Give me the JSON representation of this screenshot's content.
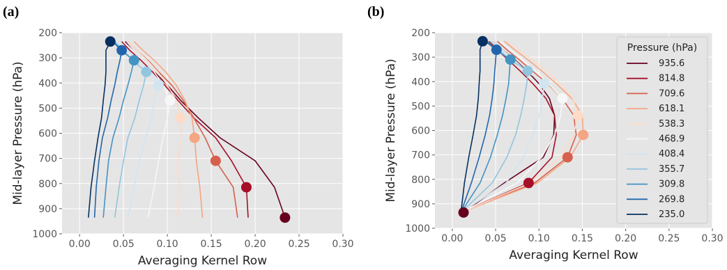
{
  "panels": {
    "a": "(a)",
    "b": "(b)"
  },
  "chart_data": [
    {
      "type": "line",
      "panel": "(a)",
      "xlabel": "Averaging Kernel Row",
      "ylabel": "Mid-layer Pressure (hPa)",
      "xlim": [
        -0.02,
        0.3
      ],
      "ylim": [
        1000,
        200
      ],
      "xticks": [
        "0.00",
        "0.05",
        "0.10",
        "0.15",
        "0.20",
        "0.25",
        "0.30"
      ],
      "yticks": [
        "200",
        "300",
        "400",
        "500",
        "600",
        "700",
        "800",
        "900",
        "1000"
      ],
      "grid": true,
      "y_levels": [
        235.0,
        269.8,
        309.8,
        355.7,
        408.4,
        468.9,
        538.3,
        618.1,
        709.6,
        814.8,
        935.6
      ],
      "series": [
        {
          "name": "935.6",
          "color": "#67001f",
          "values": [
            0.052,
            0.06,
            0.072,
            0.085,
            0.1,
            0.115,
            0.135,
            0.16,
            0.2,
            0.222,
            0.234
          ],
          "marker": {
            "y": 935.6,
            "x": 0.234
          }
        },
        {
          "name": "814.8",
          "color": "#a50f28",
          "values": [
            0.048,
            0.057,
            0.07,
            0.083,
            0.097,
            0.112,
            0.13,
            0.155,
            0.173,
            0.19,
            0.192
          ],
          "marker": {
            "y": 814.8,
            "x": 0.19
          }
        },
        {
          "name": "709.6",
          "color": "#d6604d",
          "values": [
            0.055,
            0.065,
            0.078,
            0.09,
            0.105,
            0.118,
            0.13,
            0.143,
            0.155,
            0.175,
            0.18
          ],
          "marker": {
            "y": 709.6,
            "x": 0.155
          }
        },
        {
          "name": "618.1",
          "color": "#f4a582",
          "values": [
            0.062,
            0.072,
            0.085,
            0.098,
            0.11,
            0.12,
            0.128,
            0.131,
            0.133,
            0.137,
            0.14
          ],
          "marker": {
            "y": 618.1,
            "x": 0.131
          }
        },
        {
          "name": "538.3",
          "color": "#fddbc7",
          "values": [
            0.055,
            0.065,
            0.077,
            0.089,
            0.1,
            0.11,
            0.115,
            0.116,
            0.112,
            0.114,
            0.112
          ],
          "marker": {
            "y": 538.3,
            "x": 0.115
          }
        },
        {
          "name": "468.9",
          "color": "#f7f7f7",
          "values": [
            0.05,
            0.06,
            0.072,
            0.085,
            0.095,
            0.103,
            0.1,
            0.095,
            0.09,
            0.085,
            0.078
          ],
          "marker": {
            "y": 468.9,
            "x": 0.103
          }
        },
        {
          "name": "408.4",
          "color": "#d1e5f0",
          "values": [
            0.045,
            0.055,
            0.065,
            0.08,
            0.09,
            0.085,
            0.082,
            0.075,
            0.068,
            0.062,
            0.055
          ],
          "marker": {
            "y": 408.4,
            "x": 0.09
          }
        },
        {
          "name": "355.7",
          "color": "#92c5de",
          "values": [
            0.04,
            0.05,
            0.06,
            0.076,
            0.073,
            0.068,
            0.063,
            0.055,
            0.05,
            0.045,
            0.04
          ],
          "marker": {
            "y": 355.7,
            "x": 0.076
          }
        },
        {
          "name": "309.8",
          "color": "#4393c3",
          "values": [
            0.038,
            0.047,
            0.062,
            0.059,
            0.055,
            0.05,
            0.045,
            0.038,
            0.033,
            0.03,
            0.027
          ],
          "marker": {
            "y": 309.8,
            "x": 0.062
          }
        },
        {
          "name": "269.8",
          "color": "#2166ac",
          "values": [
            0.038,
            0.048,
            0.046,
            0.043,
            0.04,
            0.036,
            0.032,
            0.026,
            0.022,
            0.019,
            0.017
          ],
          "marker": {
            "y": 269.8,
            "x": 0.048
          }
        },
        {
          "name": "235.0",
          "color": "#053061",
          "values": [
            0.035,
            0.03,
            0.03,
            0.03,
            0.029,
            0.027,
            0.025,
            0.021,
            0.017,
            0.013,
            0.01
          ],
          "marker": {
            "y": 235.0,
            "x": 0.035
          }
        }
      ]
    },
    {
      "type": "line",
      "panel": "(b)",
      "xlabel": "Averaging Kernel Row",
      "ylabel": "Mid-layer Pressure (hPa)",
      "xlim": [
        -0.02,
        0.3
      ],
      "ylim": [
        1000,
        200
      ],
      "xticks": [
        "0.00",
        "0.05",
        "0.10",
        "0.15",
        "0.20",
        "0.25",
        "0.30"
      ],
      "yticks": [
        "200",
        "300",
        "400",
        "500",
        "600",
        "700",
        "800",
        "900",
        "1000"
      ],
      "grid": true,
      "legend_title": "Pressure (hPa)",
      "legend_position": "right",
      "y_levels": [
        235.0,
        269.8,
        309.8,
        355.7,
        408.4,
        468.9,
        538.3,
        618.1,
        709.6,
        814.8,
        935.6
      ],
      "series": [
        {
          "name": "935.6",
          "color": "#67001f",
          "values": [
            0.048,
            0.058,
            0.072,
            0.086,
            0.1,
            0.112,
            0.118,
            0.117,
            0.105,
            0.06,
            0.013
          ],
          "marker": {
            "y": 935.6,
            "x": 0.013
          }
        },
        {
          "name": "814.8",
          "color": "#a50f28",
          "values": [
            0.042,
            0.052,
            0.064,
            0.078,
            0.093,
            0.108,
            0.118,
            0.12,
            0.115,
            0.088,
            0.01
          ],
          "marker": {
            "y": 814.8,
            "x": 0.088
          }
        },
        {
          "name": "709.6",
          "color": "#d6604d",
          "values": [
            0.052,
            0.063,
            0.077,
            0.092,
            0.11,
            0.127,
            0.14,
            0.143,
            0.133,
            0.095,
            0.01
          ],
          "marker": {
            "y": 709.6,
            "x": 0.133
          }
        },
        {
          "name": "618.1",
          "color": "#f4a582",
          "values": [
            0.06,
            0.072,
            0.087,
            0.103,
            0.12,
            0.138,
            0.15,
            0.151,
            0.136,
            0.098,
            0.01
          ],
          "marker": {
            "y": 618.1,
            "x": 0.151
          }
        },
        {
          "name": "538.3",
          "color": "#fddbc7",
          "values": [
            0.063,
            0.076,
            0.092,
            0.109,
            0.125,
            0.139,
            0.145,
            0.14,
            0.125,
            0.09,
            0.01
          ],
          "marker": {
            "y": 538.3,
            "x": 0.145
          }
        },
        {
          "name": "468.9",
          "color": "#f7f7f7",
          "values": [
            0.055,
            0.067,
            0.081,
            0.096,
            0.111,
            0.127,
            0.125,
            0.118,
            0.103,
            0.075,
            0.01
          ],
          "marker": {
            "y": 468.9,
            "x": 0.127
          }
        },
        {
          "name": "408.4",
          "color": "#d1e5f0",
          "values": [
            0.048,
            0.058,
            0.071,
            0.085,
            0.106,
            0.104,
            0.1,
            0.093,
            0.082,
            0.062,
            0.01
          ],
          "marker": {
            "y": 408.4,
            "x": 0.106
          }
        },
        {
          "name": "355.7",
          "color": "#92c5de",
          "values": [
            0.044,
            0.054,
            0.066,
            0.087,
            0.086,
            0.083,
            0.079,
            0.073,
            0.063,
            0.046,
            0.01
          ],
          "marker": {
            "y": 355.7,
            "x": 0.087
          }
        },
        {
          "name": "309.8",
          "color": "#4393c3",
          "values": [
            0.04,
            0.05,
            0.067,
            0.066,
            0.065,
            0.062,
            0.058,
            0.052,
            0.044,
            0.032,
            0.01
          ],
          "marker": {
            "y": 309.8,
            "x": 0.067
          }
        },
        {
          "name": "269.8",
          "color": "#2166ac",
          "values": [
            0.038,
            0.051,
            0.05,
            0.049,
            0.048,
            0.046,
            0.043,
            0.038,
            0.031,
            0.022,
            0.01
          ],
          "marker": {
            "y": 269.8,
            "x": 0.051
          }
        },
        {
          "name": "235.0",
          "color": "#053061",
          "values": [
            0.035,
            0.032,
            0.032,
            0.032,
            0.031,
            0.03,
            0.028,
            0.024,
            0.019,
            0.014,
            0.01
          ],
          "marker": {
            "y": 235.0,
            "x": 0.035
          }
        }
      ]
    }
  ]
}
